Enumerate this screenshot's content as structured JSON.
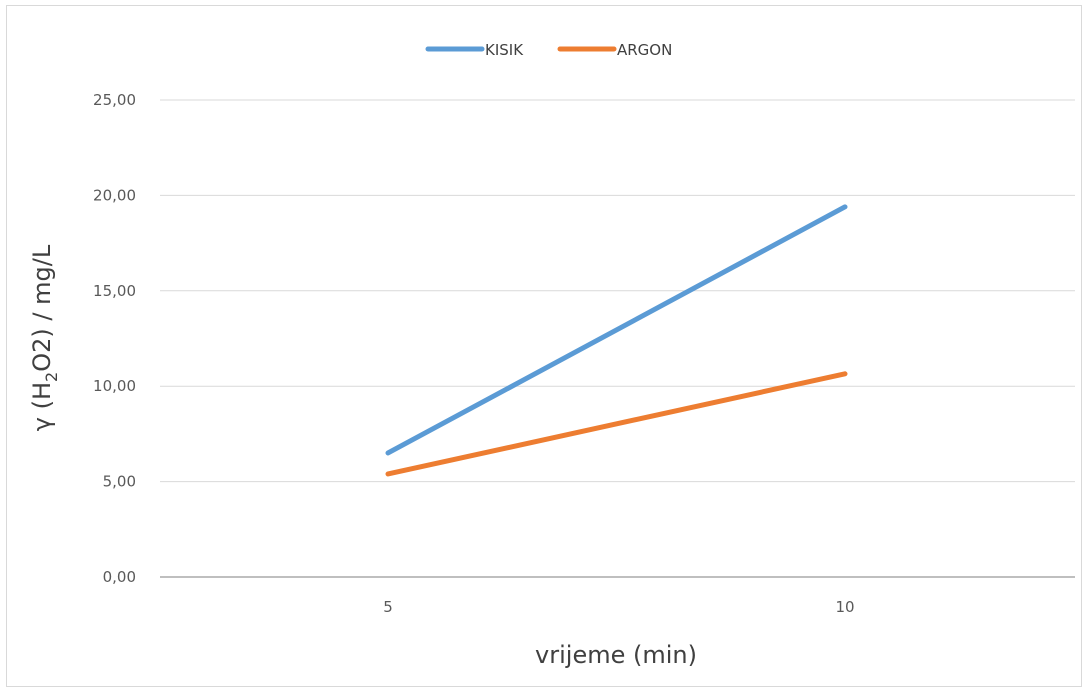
{
  "chart_data": {
    "type": "line",
    "categories": [
      "5",
      "10"
    ],
    "series": [
      {
        "name": "KISIK",
        "values": [
          6.5,
          19.4
        ],
        "color": "#5b9bd5"
      },
      {
        "name": "ARGON",
        "values": [
          5.4,
          10.65
        ],
        "color": "#ed7d31"
      }
    ],
    "y_ticks": [
      "0,00",
      "5,00",
      "10,00",
      "15,00",
      "20,00",
      "25,00"
    ],
    "ylim": [
      0,
      25
    ],
    "xlabel": "vrijeme (min)",
    "ylabel": {
      "prefix": "γ (H",
      "subscript": "2",
      "suffix": "O2) / mg/L"
    },
    "grid": true,
    "legend_position": "top"
  }
}
